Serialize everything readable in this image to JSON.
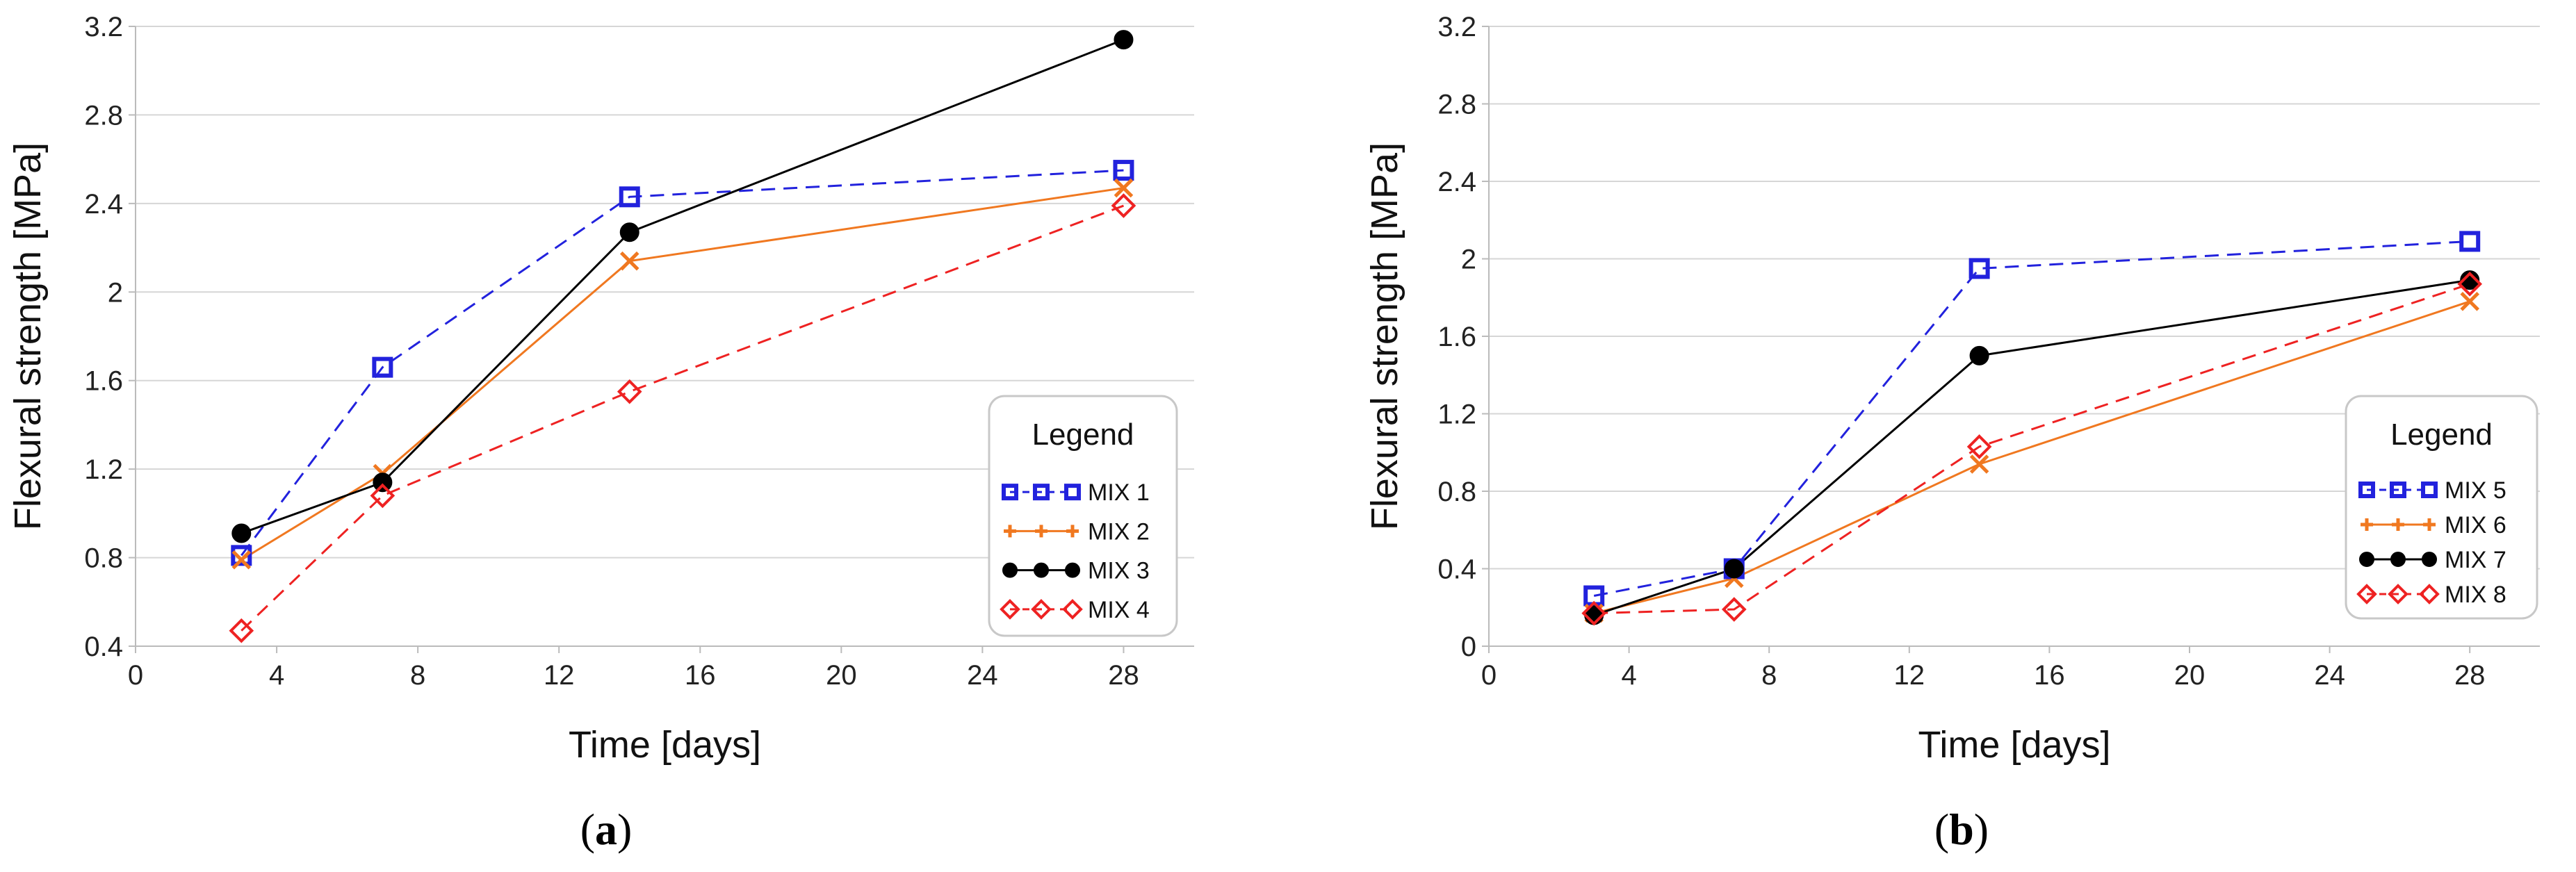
{
  "chart_data": [
    {
      "type": "line",
      "panel_label": "a",
      "xlabel": "Time [days]",
      "ylabel": "Flexural strength [MPa]",
      "xlim": [
        0,
        30
      ],
      "ylim": [
        0.4,
        3.2
      ],
      "xticks": [
        0,
        4,
        8,
        12,
        16,
        20,
        24,
        28
      ],
      "yticks": [
        0.4,
        0.8,
        1.2,
        1.6,
        2,
        2.4,
        2.8,
        3.2
      ],
      "ytick_labels": [
        "0.4",
        "0.8",
        "1.2",
        "1.6",
        "2",
        "2.4",
        "2.8",
        "3.2"
      ],
      "grid": "horizontal",
      "legend": {
        "title": "Legend",
        "position": "right-center"
      },
      "series": [
        {
          "name": "MIX 1",
          "marker": "square",
          "line": "dashed",
          "color": "#2222dd",
          "x": [
            3,
            7,
            14,
            28
          ],
          "y": [
            0.81,
            1.66,
            2.43,
            2.55
          ]
        },
        {
          "name": "MIX 2",
          "marker": "cross",
          "line": "solid",
          "color": "#f07820",
          "x": [
            3,
            7,
            14,
            28
          ],
          "y": [
            0.79,
            1.18,
            2.14,
            2.47
          ]
        },
        {
          "name": "MIX 3",
          "marker": "circle",
          "line": "solid",
          "color": "#000000",
          "x": [
            3,
            7,
            14,
            28
          ],
          "y": [
            0.91,
            1.14,
            2.27,
            3.14
          ]
        },
        {
          "name": "MIX 4",
          "marker": "diamond",
          "line": "dashed",
          "color": "#ee2222",
          "x": [
            3,
            7,
            14,
            28
          ],
          "y": [
            0.47,
            1.08,
            1.55,
            2.39
          ]
        }
      ]
    },
    {
      "type": "line",
      "panel_label": "b",
      "xlabel": "Time [days]",
      "ylabel": "Flexural strength [MPa]",
      "xlim": [
        0,
        30
      ],
      "ylim": [
        0,
        3.2
      ],
      "xticks": [
        0,
        4,
        8,
        12,
        16,
        20,
        24,
        28
      ],
      "yticks": [
        0,
        0.4,
        0.8,
        1.2,
        1.6,
        2,
        2.4,
        2.8,
        3.2
      ],
      "ytick_labels": [
        "0",
        "0.4",
        "0.8",
        "1.2",
        "1.6",
        "2",
        "2.4",
        "2.8",
        "3.2"
      ],
      "grid": "horizontal",
      "legend": {
        "title": "Legend",
        "position": "right-center"
      },
      "series": [
        {
          "name": "MIX 5",
          "marker": "square",
          "line": "dashed",
          "color": "#2222dd",
          "x": [
            3,
            7,
            14,
            28
          ],
          "y": [
            0.26,
            0.4,
            1.95,
            2.09
          ]
        },
        {
          "name": "MIX 6",
          "marker": "cross",
          "line": "solid",
          "color": "#f07820",
          "x": [
            3,
            7,
            14,
            28
          ],
          "y": [
            0.17,
            0.35,
            0.94,
            1.78
          ]
        },
        {
          "name": "MIX 7",
          "marker": "circle",
          "line": "solid",
          "color": "#000000",
          "x": [
            3,
            7,
            14,
            28
          ],
          "y": [
            0.16,
            0.4,
            1.5,
            1.89
          ]
        },
        {
          "name": "MIX 8",
          "marker": "diamond",
          "line": "dashed",
          "color": "#ee2222",
          "x": [
            3,
            7,
            14,
            28
          ],
          "y": [
            0.17,
            0.19,
            1.03,
            1.87
          ]
        }
      ]
    }
  ]
}
